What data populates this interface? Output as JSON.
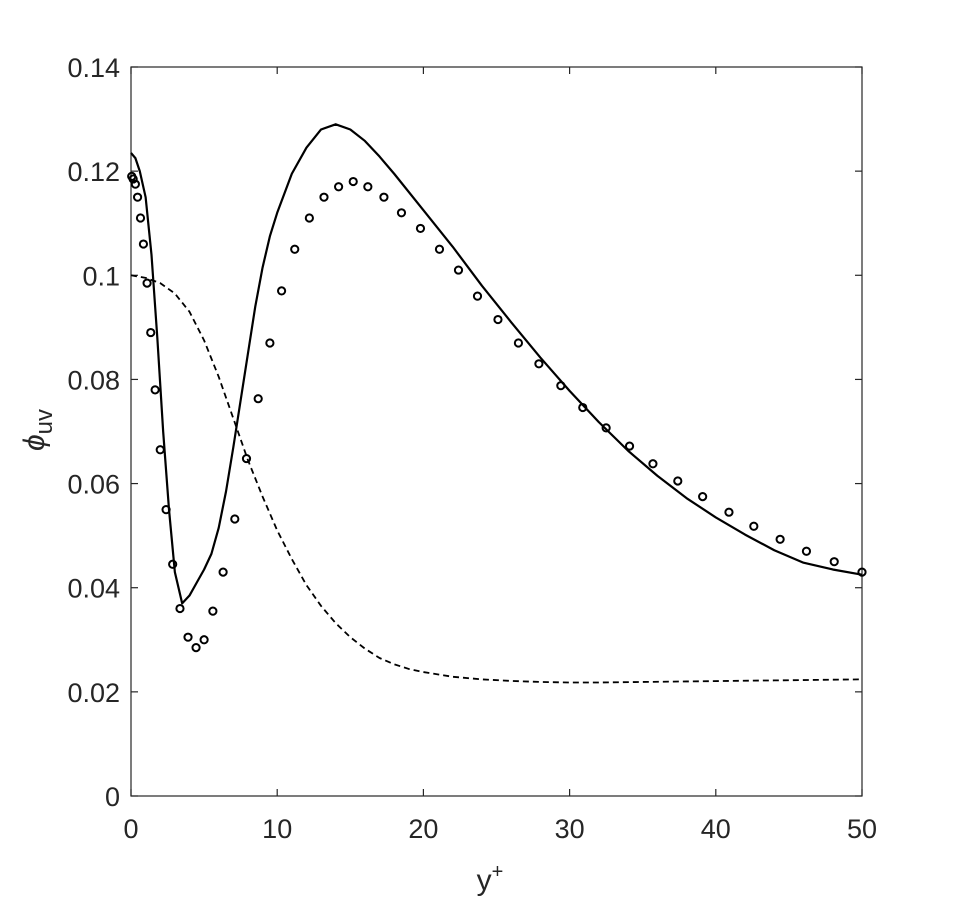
{
  "chart_data": {
    "type": "line",
    "xlabel": "y",
    "xlabel_sup": "+",
    "ylabel_symbol": "ϕ",
    "ylabel_sub": "uv",
    "xlim": [
      0,
      50
    ],
    "ylim": [
      0,
      0.14
    ],
    "xticks": [
      0,
      10,
      20,
      30,
      40,
      50
    ],
    "xtick_labels": [
      "0",
      "10",
      "20",
      "30",
      "40",
      "50"
    ],
    "yticks": [
      0,
      0.02,
      0.04,
      0.06,
      0.08,
      0.1,
      0.12,
      0.14
    ],
    "ytick_labels": [
      "0",
      "0.02",
      "0.04",
      "0.06",
      "0.08",
      "0.1",
      "0.12",
      "0.14"
    ],
    "grid": false,
    "color": "#000000",
    "series": [
      {
        "style": "solid",
        "x": [
          0,
          0.3,
          0.6,
          1.0,
          1.4,
          1.8,
          2.2,
          2.6,
          3.0,
          3.5,
          4.0,
          4.5,
          5.0,
          5.5,
          6.0,
          6.5,
          7.0,
          7.5,
          8.0,
          8.5,
          9.0,
          9.5,
          10.0,
          11.0,
          12.0,
          13.0,
          14.0,
          15.0,
          16.0,
          17.0,
          18.0,
          20.0,
          22.0,
          24.0,
          26.0,
          28.0,
          30.0,
          32.0,
          34.0,
          36.0,
          38.0,
          40.0,
          42.0,
          44.0,
          46.0,
          48.0,
          50.0
        ],
        "y": [
          0.1235,
          0.1225,
          0.12,
          0.115,
          0.104,
          0.088,
          0.07,
          0.055,
          0.043,
          0.037,
          0.0385,
          0.041,
          0.0435,
          0.0465,
          0.0515,
          0.0585,
          0.067,
          0.076,
          0.085,
          0.094,
          0.1015,
          0.1075,
          0.112,
          0.1195,
          0.1245,
          0.128,
          0.129,
          0.128,
          0.1258,
          0.1228,
          0.1195,
          0.1125,
          0.1055,
          0.098,
          0.091,
          0.0842,
          0.0778,
          0.0718,
          0.0663,
          0.0615,
          0.0572,
          0.0535,
          0.0502,
          0.0472,
          0.0448,
          0.0435,
          0.0425
        ]
      },
      {
        "style": "dashed",
        "x": [
          0,
          1,
          2,
          3,
          4,
          5,
          6,
          7,
          8,
          9,
          10,
          11,
          12,
          13,
          14,
          15,
          16,
          17,
          18,
          19,
          20,
          22,
          24,
          26,
          28,
          30,
          32,
          35,
          38,
          41,
          44,
          47,
          50
        ],
        "y": [
          0.1,
          0.0995,
          0.0985,
          0.0965,
          0.093,
          0.0875,
          0.0805,
          0.0725,
          0.0645,
          0.0575,
          0.051,
          0.0455,
          0.0405,
          0.0365,
          0.0332,
          0.0305,
          0.0283,
          0.0265,
          0.0253,
          0.0244,
          0.0238,
          0.0229,
          0.0224,
          0.0221,
          0.0219,
          0.0218,
          0.0218,
          0.0219,
          0.022,
          0.0221,
          0.0222,
          0.0223,
          0.0224
        ]
      },
      {
        "style": "markers",
        "x": [
          0.05,
          0.15,
          0.3,
          0.45,
          0.65,
          0.85,
          1.1,
          1.35,
          1.65,
          2.0,
          2.4,
          2.85,
          3.35,
          3.9,
          4.45,
          5.0,
          5.6,
          6.3,
          7.1,
          7.9,
          8.7,
          9.5,
          10.3,
          11.2,
          12.2,
          13.2,
          14.2,
          15.2,
          16.2,
          17.3,
          18.5,
          19.8,
          21.1,
          22.4,
          23.7,
          25.1,
          26.5,
          27.9,
          29.4,
          30.9,
          32.5,
          34.1,
          35.7,
          37.4,
          39.1,
          40.9,
          42.6,
          44.4,
          46.2,
          48.1,
          50.0
        ],
        "y": [
          0.119,
          0.1185,
          0.1175,
          0.115,
          0.111,
          0.106,
          0.0985,
          0.089,
          0.078,
          0.0665,
          0.055,
          0.0445,
          0.036,
          0.0305,
          0.0285,
          0.03,
          0.0355,
          0.043,
          0.0532,
          0.0648,
          0.0763,
          0.087,
          0.097,
          0.105,
          0.111,
          0.115,
          0.117,
          0.118,
          0.117,
          0.115,
          0.112,
          0.109,
          0.105,
          0.101,
          0.096,
          0.0915,
          0.087,
          0.083,
          0.0788,
          0.0746,
          0.0707,
          0.0672,
          0.0638,
          0.0605,
          0.0575,
          0.0545,
          0.0518,
          0.0493,
          0.047,
          0.045,
          0.043
        ]
      }
    ]
  }
}
